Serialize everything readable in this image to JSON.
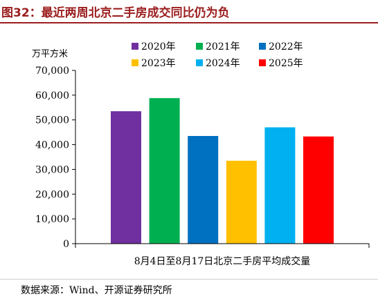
{
  "header": {
    "title": "图32：最近两周北京二手房成交同比仍为负"
  },
  "footer": {
    "source": "数据来源：Wind、开源证券研究所"
  },
  "chart_data": {
    "type": "bar",
    "title": "",
    "ylabel": "万平方米",
    "xlabel": "",
    "categories": [
      "8月4日至8月17日北京二手房平均成交量"
    ],
    "ylim": [
      0,
      70000
    ],
    "yticks": [
      0,
      10000,
      20000,
      30000,
      40000,
      50000,
      60000,
      70000
    ],
    "ytick_labels": [
      "0",
      "10,000",
      "20,000",
      "30,000",
      "40,000",
      "50,000",
      "60,000",
      "70,000"
    ],
    "grid": false,
    "legend_position": "top",
    "series": [
      {
        "name": "2020年",
        "values": [
          53500
        ],
        "color": "#7030A0"
      },
      {
        "name": "2021年",
        "values": [
          58800
        ],
        "color": "#00B050"
      },
      {
        "name": "2022年",
        "values": [
          43500
        ],
        "color": "#0070C0"
      },
      {
        "name": "2023年",
        "values": [
          33500
        ],
        "color": "#FFC000"
      },
      {
        "name": "2024年",
        "values": [
          47000
        ],
        "color": "#00B0F0"
      },
      {
        "name": "2025年",
        "values": [
          43300
        ],
        "color": "#FF0000"
      }
    ]
  }
}
